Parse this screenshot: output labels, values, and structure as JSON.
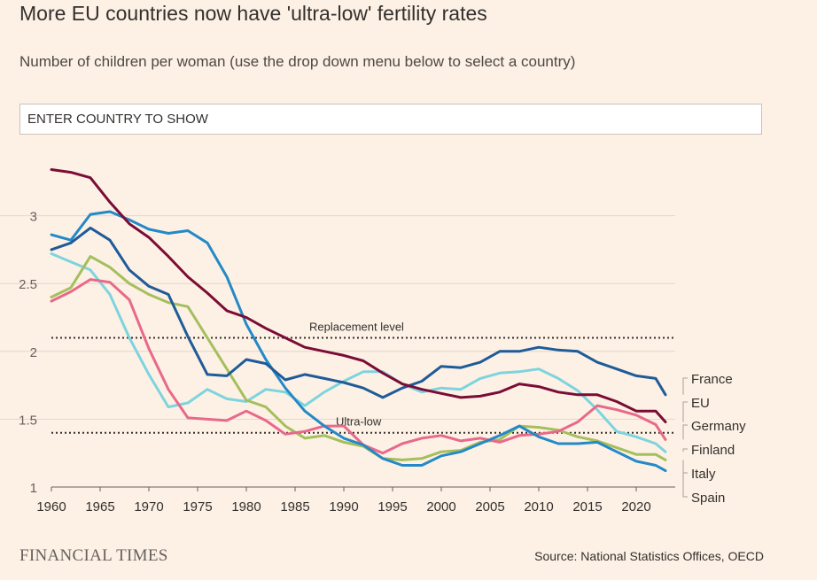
{
  "header": {
    "title": "More EU countries now have 'ultra-low' fertility rates",
    "subtitle": "Number of children per woman (use the drop down menu below to select a country)"
  },
  "search": {
    "placeholder": "ENTER COUNTRY TO SHOW"
  },
  "footer": {
    "brand": "FINANCIAL TIMES",
    "source": "Source: National Statistics Offices, OECD"
  },
  "chart_data": {
    "type": "line",
    "title": "",
    "xlabel": "",
    "ylabel": "",
    "xlim": [
      1960,
      2024
    ],
    "ylim": [
      1,
      3.35
    ],
    "xticks": [
      "1960",
      "1965",
      "1970",
      "1975",
      "1980",
      "1985",
      "1990",
      "1995",
      "2000",
      "2005",
      "2010",
      "2015",
      "2020"
    ],
    "yticks": [
      "1",
      "1.5",
      "2",
      "2.5",
      "3"
    ],
    "grid": true,
    "reference_lines": [
      {
        "label": "Replacement level",
        "value": 2.1
      },
      {
        "label": "Ultra-low",
        "value": 1.4
      }
    ],
    "series": [
      {
        "name": "France",
        "color": "#1f5b99",
        "x": [
          1960,
          1962,
          1964,
          1966,
          1968,
          1970,
          1972,
          1974,
          1976,
          1978,
          1980,
          1982,
          1984,
          1986,
          1988,
          1990,
          1992,
          1994,
          1996,
          1998,
          2000,
          2002,
          2004,
          2006,
          2008,
          2010,
          2012,
          2014,
          2016,
          2018,
          2020,
          2022,
          2023
        ],
        "y": [
          2.75,
          2.8,
          2.91,
          2.82,
          2.6,
          2.48,
          2.42,
          2.11,
          1.83,
          1.82,
          1.94,
          1.91,
          1.79,
          1.83,
          1.8,
          1.77,
          1.73,
          1.66,
          1.73,
          1.78,
          1.89,
          1.88,
          1.92,
          2.0,
          2.0,
          2.03,
          2.01,
          2.0,
          1.92,
          1.87,
          1.82,
          1.8,
          1.68
        ]
      },
      {
        "name": "EU",
        "color": "#7a0c35",
        "x": [
          1960,
          1962,
          1964,
          1966,
          1968,
          1970,
          1972,
          1974,
          1976,
          1978,
          1980,
          1982,
          1984,
          1986,
          1988,
          1990,
          1992,
          1994,
          1996,
          1998,
          2000,
          2002,
          2004,
          2006,
          2008,
          2010,
          2012,
          2014,
          2016,
          2018,
          2020,
          2022,
          2023
        ],
        "y": [
          3.34,
          3.32,
          3.28,
          3.1,
          2.94,
          2.84,
          2.7,
          2.55,
          2.43,
          2.3,
          2.25,
          2.17,
          2.1,
          2.03,
          2.0,
          1.97,
          1.93,
          1.84,
          1.76,
          1.72,
          1.69,
          1.66,
          1.67,
          1.7,
          1.76,
          1.74,
          1.7,
          1.68,
          1.68,
          1.63,
          1.56,
          1.56,
          1.48
        ]
      },
      {
        "name": "Germany",
        "color": "#e8698a",
        "x": [
          1960,
          1962,
          1964,
          1966,
          1968,
          1970,
          1972,
          1974,
          1976,
          1978,
          1980,
          1982,
          1984,
          1986,
          1988,
          1990,
          1992,
          1994,
          1996,
          1998,
          2000,
          2002,
          2004,
          2006,
          2008,
          2010,
          2012,
          2014,
          2016,
          2018,
          2020,
          2022,
          2023
        ],
        "y": [
          2.37,
          2.44,
          2.53,
          2.51,
          2.38,
          2.02,
          1.72,
          1.51,
          1.5,
          1.49,
          1.56,
          1.49,
          1.39,
          1.41,
          1.45,
          1.45,
          1.31,
          1.25,
          1.32,
          1.36,
          1.38,
          1.34,
          1.36,
          1.33,
          1.38,
          1.39,
          1.41,
          1.48,
          1.6,
          1.57,
          1.53,
          1.46,
          1.35
        ]
      },
      {
        "name": "Finland",
        "color": "#7dd4de",
        "x": [
          1960,
          1962,
          1964,
          1966,
          1968,
          1970,
          1972,
          1974,
          1976,
          1978,
          1980,
          1982,
          1984,
          1986,
          1988,
          1990,
          1992,
          1994,
          1996,
          1998,
          2000,
          2002,
          2004,
          2006,
          2008,
          2010,
          2012,
          2014,
          2016,
          2018,
          2020,
          2022,
          2023
        ],
        "y": [
          2.72,
          2.66,
          2.6,
          2.42,
          2.1,
          1.83,
          1.59,
          1.62,
          1.72,
          1.65,
          1.63,
          1.72,
          1.7,
          1.6,
          1.7,
          1.78,
          1.85,
          1.85,
          1.76,
          1.7,
          1.73,
          1.72,
          1.8,
          1.84,
          1.85,
          1.87,
          1.8,
          1.71,
          1.57,
          1.41,
          1.37,
          1.32,
          1.26
        ]
      },
      {
        "name": "Italy",
        "color": "#a4bf5c",
        "x": [
          1960,
          1962,
          1964,
          1966,
          1968,
          1970,
          1972,
          1974,
          1976,
          1978,
          1980,
          1982,
          1984,
          1986,
          1988,
          1990,
          1992,
          1994,
          1996,
          1998,
          2000,
          2002,
          2004,
          2006,
          2008,
          2010,
          2012,
          2014,
          2016,
          2018,
          2020,
          2022,
          2023
        ],
        "y": [
          2.4,
          2.47,
          2.7,
          2.62,
          2.5,
          2.42,
          2.36,
          2.33,
          2.1,
          1.87,
          1.64,
          1.59,
          1.45,
          1.36,
          1.38,
          1.33,
          1.3,
          1.21,
          1.2,
          1.21,
          1.26,
          1.27,
          1.33,
          1.35,
          1.45,
          1.44,
          1.42,
          1.37,
          1.34,
          1.29,
          1.24,
          1.24,
          1.2
        ]
      },
      {
        "name": "Spain",
        "color": "#2389c7",
        "x": [
          1960,
          1962,
          1964,
          1966,
          1968,
          1970,
          1972,
          1974,
          1976,
          1978,
          1980,
          1982,
          1984,
          1986,
          1988,
          1990,
          1992,
          1994,
          1996,
          1998,
          2000,
          2002,
          2004,
          2006,
          2008,
          2010,
          2012,
          2014,
          2016,
          2018,
          2020,
          2022,
          2023
        ],
        "y": [
          2.86,
          2.82,
          3.01,
          3.03,
          2.97,
          2.9,
          2.87,
          2.89,
          2.8,
          2.55,
          2.2,
          1.94,
          1.73,
          1.56,
          1.45,
          1.36,
          1.31,
          1.21,
          1.16,
          1.16,
          1.23,
          1.26,
          1.32,
          1.38,
          1.45,
          1.37,
          1.32,
          1.32,
          1.33,
          1.26,
          1.19,
          1.16,
          1.12
        ]
      }
    ]
  }
}
